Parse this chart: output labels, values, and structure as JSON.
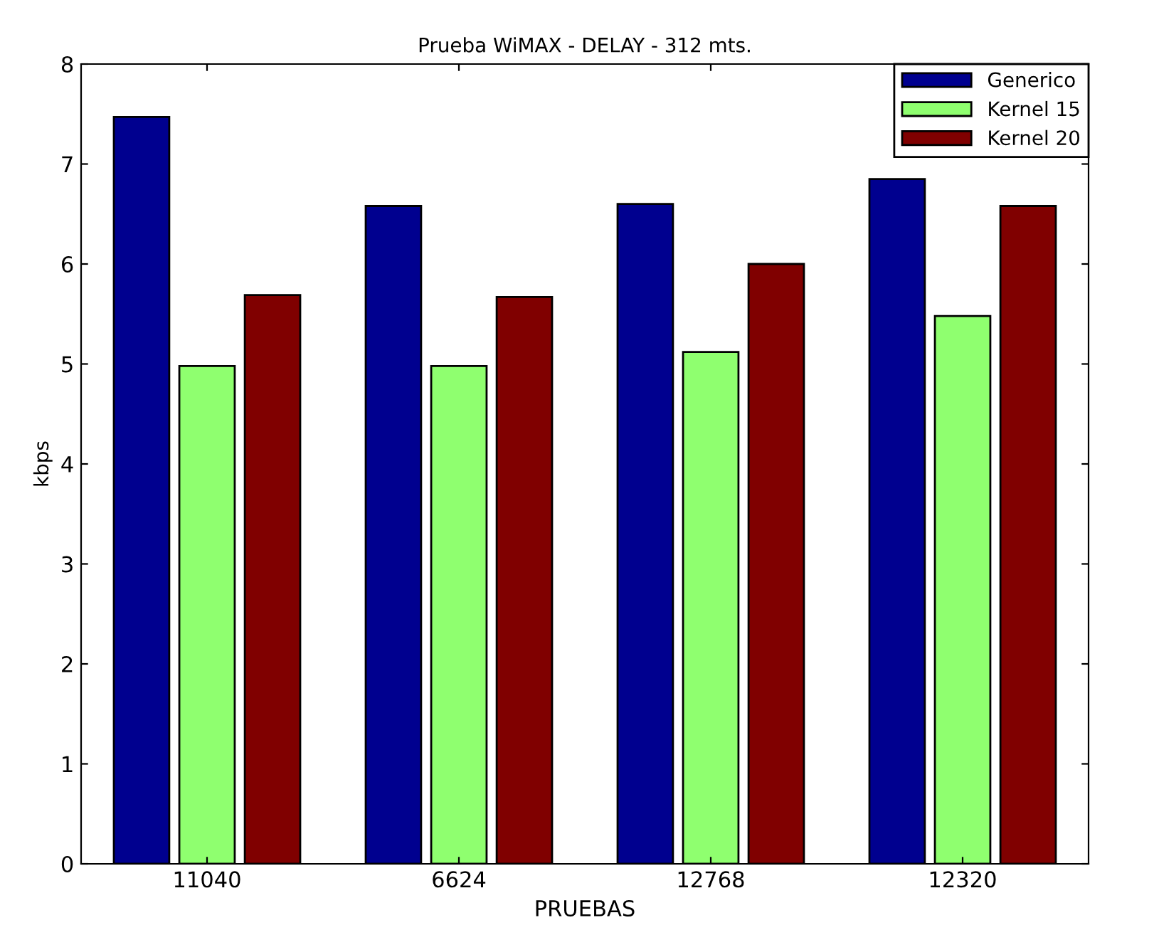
{
  "chart_data": {
    "type": "bar",
    "title": "Prueba WiMAX - DELAY - 312 mts.",
    "xlabel": "PRUEBAS",
    "ylabel": "kbps",
    "categories": [
      "11040",
      "6624",
      "12768",
      "12320"
    ],
    "series": [
      {
        "name": "Generico",
        "color": "#00008f",
        "values": [
          7.47,
          6.58,
          6.6,
          6.85
        ]
      },
      {
        "name": "Kernel 15",
        "color": "#8fff6f",
        "values": [
          4.98,
          4.98,
          5.12,
          5.48
        ]
      },
      {
        "name": "Kernel 20",
        "color": "#800000",
        "values": [
          5.69,
          5.67,
          6.0,
          6.58
        ]
      }
    ],
    "ylim": [
      0,
      8
    ],
    "yticks": [
      0,
      1,
      2,
      3,
      4,
      5,
      6,
      7,
      8
    ],
    "grid": false,
    "legend": "top right"
  }
}
